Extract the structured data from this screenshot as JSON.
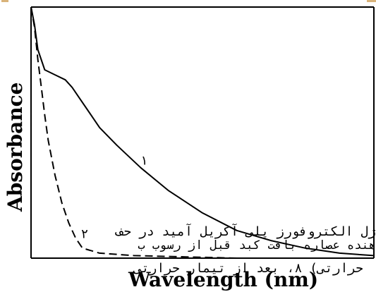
{
  "chart_data": {
    "type": "line",
    "xlabel": "Wavelength (nm)",
    "ylabel": "Absorbance",
    "xlim": [
      0,
      1
    ],
    "ylim": [
      0,
      1
    ],
    "grid": false,
    "series": [
      {
        "name": "۱",
        "style": "solid",
        "x": [
          0.0,
          0.01,
          0.02,
          0.04,
          0.07,
          0.1,
          0.12,
          0.14,
          0.17,
          0.2,
          0.25,
          0.32,
          0.4,
          0.5,
          0.6,
          0.7,
          0.8,
          0.9,
          1.0
        ],
        "y": [
          1.0,
          0.93,
          0.83,
          0.75,
          0.73,
          0.71,
          0.68,
          0.64,
          0.58,
          0.52,
          0.45,
          0.36,
          0.27,
          0.18,
          0.11,
          0.07,
          0.04,
          0.02,
          0.01
        ]
      },
      {
        "name": "۲",
        "style": "dashed",
        "x": [
          0.0,
          0.01,
          0.02,
          0.03,
          0.04,
          0.05,
          0.07,
          0.09,
          0.11,
          0.13,
          0.15,
          0.2,
          0.3,
          0.45,
          0.6,
          0.8,
          1.0
        ],
        "y": [
          1.0,
          0.92,
          0.79,
          0.68,
          0.57,
          0.47,
          0.33,
          0.22,
          0.14,
          0.08,
          0.04,
          0.02,
          0.01,
          0.005,
          0.0,
          0.0,
          0.0
        ]
      }
    ]
  },
  "caption": {
    "line1": "ژل الکتروفورز پلی آکریل آمید در حف",
    "line2": "هنده عصاره بافت کبد قبل از رسوب ب",
    "line3": "حرارتی) ۸، بعد از تیمار حرارتی"
  }
}
